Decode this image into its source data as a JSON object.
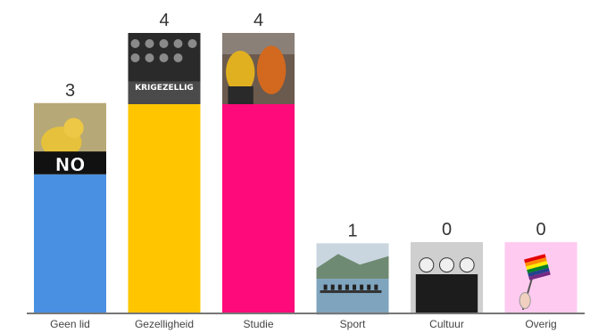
{
  "chart_data": {
    "type": "bar",
    "title": "",
    "xlabel": "",
    "ylabel": "",
    "ylim": [
      0,
      4.5
    ],
    "grid": false,
    "categories": [
      "Geen lid",
      "Gezelligheid",
      "Studie",
      "Sport",
      "Cultuur",
      "Overig"
    ],
    "values": [
      3,
      4,
      4,
      1,
      0,
      0
    ],
    "colors": [
      "#4a90e2",
      "#ffc600",
      "#ff0a7a",
      "#b3e8a0",
      "#b7e3fb",
      "#ffcaf0"
    ],
    "bar_images": [
      {
        "subject": "duckling",
        "caption": "NO"
      },
      {
        "subject": "crowd-photo",
        "caption": "KRIGEZELLIG"
      },
      {
        "subject": "muppets",
        "caption": ""
      },
      {
        "subject": "rowing-boat",
        "caption": ""
      },
      {
        "subject": "group-photo-bw",
        "caption": ""
      },
      {
        "subject": "rainbow-flag",
        "caption": ""
      }
    ]
  }
}
